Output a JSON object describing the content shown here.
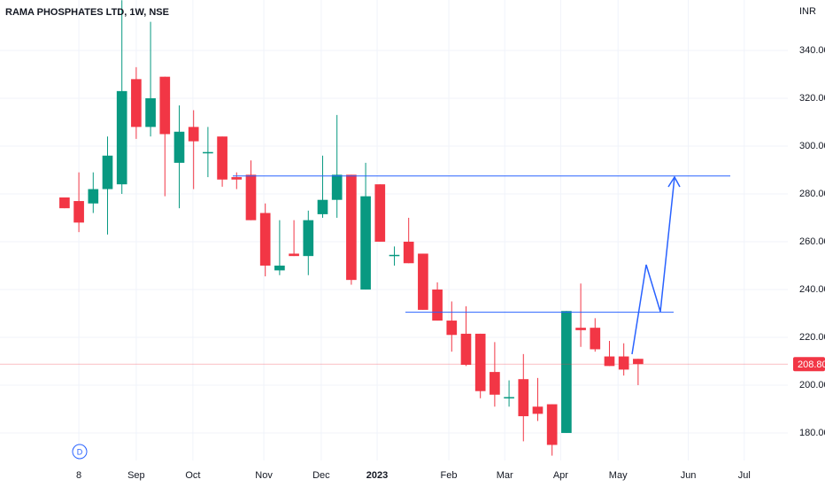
{
  "chart_data": {
    "type": "candlestick",
    "title": "RAMA PHOSPHATES LTD, 1W, NSE",
    "currency": "INR",
    "x": [
      0,
      1,
      2,
      3,
      4,
      5,
      6,
      7,
      8,
      9,
      10,
      11,
      12,
      13,
      14,
      15,
      16,
      17,
      18,
      19,
      20,
      21,
      22,
      23,
      24,
      25,
      26,
      27,
      28,
      29,
      30,
      31,
      32,
      33,
      34,
      35,
      36,
      37,
      38,
      39,
      40
    ],
    "open": [
      278.5,
      277,
      276,
      282,
      284,
      328,
      308,
      329,
      293,
      308,
      297,
      304,
      287,
      288,
      272,
      248,
      255,
      254,
      271.5,
      277.5,
      288,
      240,
      284,
      254,
      260,
      255,
      240,
      227,
      221.5,
      221.5,
      205.5,
      194.5,
      202.5,
      191,
      192,
      180,
      224,
      224,
      212,
      212,
      211
    ],
    "high": [
      278.5,
      289,
      289,
      304,
      361,
      333,
      352,
      329,
      317,
      315,
      308,
      304,
      289,
      294,
      276,
      269,
      269,
      273,
      296,
      313,
      288,
      293,
      284,
      258,
      270,
      255,
      243,
      235,
      233,
      221.5,
      218,
      202,
      213,
      203,
      192,
      231,
      242.5,
      228,
      218.5,
      217.5,
      211
    ],
    "low": [
      274,
      264,
      272,
      263,
      280,
      303,
      304,
      279,
      274,
      282,
      287,
      283,
      282,
      269,
      245.5,
      246,
      254,
      246,
      270,
      270,
      242,
      240,
      260,
      250,
      251,
      231.5,
      227,
      214,
      208,
      194.5,
      191,
      191,
      176.5,
      185,
      170.5,
      180,
      216,
      214,
      208,
      204,
      200
    ],
    "close": [
      274,
      268,
      282,
      296,
      323,
      308,
      320,
      305,
      306,
      302,
      297.5,
      286,
      286,
      269,
      250,
      250,
      254,
      269,
      277.5,
      288,
      244,
      279,
      260,
      254.5,
      251,
      231.5,
      227,
      221,
      208.5,
      197.5,
      196,
      195,
      187,
      188,
      175,
      231,
      223,
      215,
      208,
      206.5,
      208.8
    ],
    "up_color": "#089981",
    "down_color": "#f23645",
    "xlim": [
      -4.5,
      50.44
    ],
    "xticks": [
      {
        "value": 1,
        "label": "8"
      },
      {
        "value": 5,
        "label": "Sep"
      },
      {
        "value": 8.95,
        "label": "Oct"
      },
      {
        "value": 13.9,
        "label": "Nov"
      },
      {
        "value": 17.9,
        "label": "Dec"
      },
      {
        "value": 21.8,
        "label": "2023"
      },
      {
        "value": 26.8,
        "label": "Feb"
      },
      {
        "value": 30.7,
        "label": "Mar"
      },
      {
        "value": 34.6,
        "label": "Apr"
      },
      {
        "value": 38.6,
        "label": "May"
      },
      {
        "value": 43.5,
        "label": "Jun"
      },
      {
        "value": 47.4,
        "label": "Jul"
      }
    ],
    "ylim": [
      168.5,
      361.1
    ],
    "yticks": [
      {
        "value": 180,
        "label": "180.00"
      },
      {
        "value": 200,
        "label": "200.00"
      },
      {
        "value": 220,
        "label": "220.00"
      },
      {
        "value": 240,
        "label": "240.00"
      },
      {
        "value": 260,
        "label": "260.00"
      },
      {
        "value": 280,
        "label": "280.00"
      },
      {
        "value": 300,
        "label": "300.00"
      },
      {
        "value": 320,
        "label": "320.00"
      },
      {
        "value": 340,
        "label": "340.00"
      }
    ],
    "grid": true,
    "last_price": {
      "value": 208.8,
      "label": "208.80"
    },
    "levels": [
      287.5,
      230.5
    ],
    "level_color": "#2962ff",
    "interval_badge": "D"
  }
}
